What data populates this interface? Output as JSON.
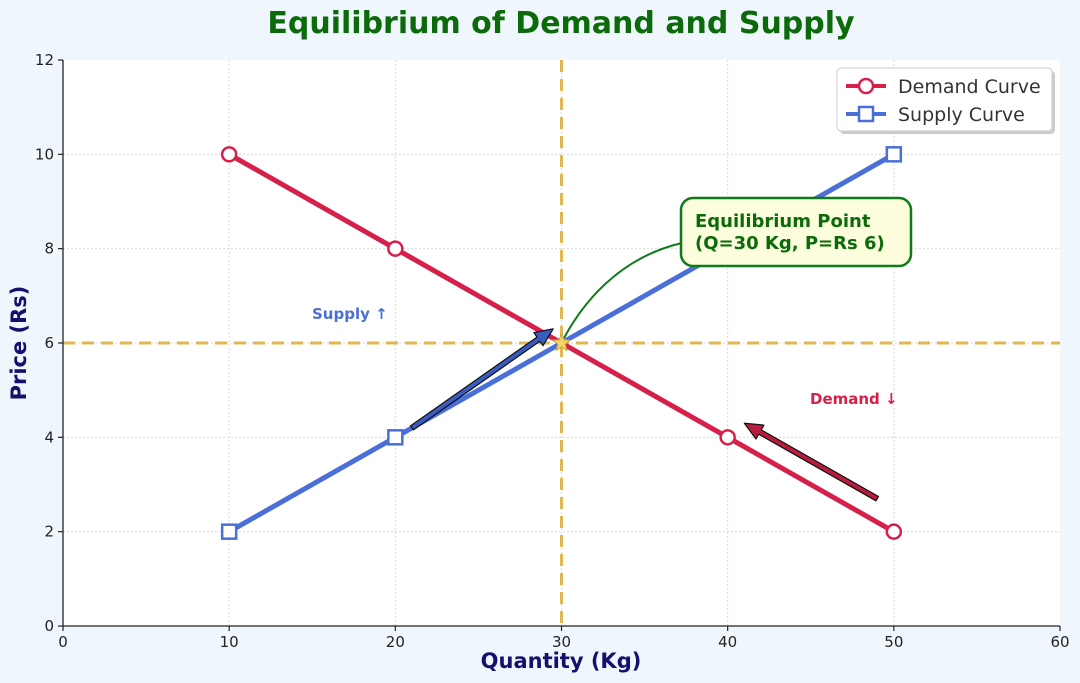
{
  "colors": {
    "demand": "#d6204b",
    "supply": "#4a6fd9",
    "equilibrium_lines": "#e0b84f",
    "annotation_border": "#0e7a1a",
    "annotation_fill": "#fcfddc",
    "title": "#0b6b0b",
    "axis_label": "#12126e",
    "grid": "#d9d9d9"
  },
  "chart_data": {
    "type": "line",
    "title": "Equilibrium of Demand and Supply",
    "xlabel": "Quantity (Kg)",
    "ylabel": "Price (Rs)",
    "xlim": [
      0,
      60
    ],
    "ylim": [
      0,
      12
    ],
    "xticks": [
      0,
      10,
      20,
      30,
      40,
      50,
      60
    ],
    "yticks": [
      0,
      2,
      4,
      6,
      8,
      10,
      12
    ],
    "grid": true,
    "legend_position": "top-right",
    "series": [
      {
        "name": "Demand Curve",
        "marker": "circle",
        "x": [
          10,
          20,
          30,
          40,
          50
        ],
        "y": [
          10,
          8,
          6,
          4,
          2
        ]
      },
      {
        "name": "Supply Curve",
        "marker": "square",
        "x": [
          10,
          20,
          30,
          40,
          50
        ],
        "y": [
          2,
          4,
          6,
          8,
          10
        ]
      }
    ],
    "equilibrium": {
      "x": 30,
      "y": 6
    },
    "annotations": {
      "equilibrium_label_line1": "Equilibrium Point",
      "equilibrium_label_line2": "(Q=30 Kg, P=Rs 6)",
      "supply_label": "Supply ↑",
      "demand_label": "Demand ↓"
    },
    "arrows": [
      {
        "name": "supply-arrow",
        "from": [
          21,
          4.2
        ],
        "to": [
          29.5,
          6.3
        ]
      },
      {
        "name": "demand-arrow",
        "from": [
          49,
          2.7
        ],
        "to": [
          41,
          4.3
        ]
      }
    ]
  }
}
